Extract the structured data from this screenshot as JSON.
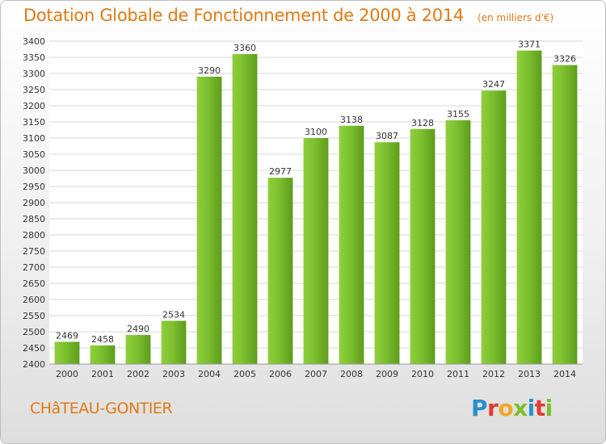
{
  "header": {
    "title": "Dotation Globale de Fonctionnement de 2000 à 2014",
    "subtitle": "(en milliers d'€)"
  },
  "footer": {
    "commune": "CHâTEAU-GONTIER",
    "logo_letters": [
      "P",
      "r",
      "o",
      "x",
      "i",
      "t",
      "i"
    ],
    "logo_colors": [
      "#2a8fd0",
      "#e03c31",
      "#f5a623",
      "#7bbf2a",
      "#2a8fd0",
      "#e03c31",
      "#7bbf2a"
    ]
  },
  "chart_data": {
    "type": "bar",
    "categories": [
      "2000",
      "2001",
      "2002",
      "2003",
      "2004",
      "2005",
      "2006",
      "2007",
      "2008",
      "2009",
      "2010",
      "2011",
      "2012",
      "2013",
      "2014"
    ],
    "values": [
      2469,
      2458,
      2490,
      2534,
      3290,
      3360,
      2977,
      3100,
      3138,
      3087,
      3128,
      3155,
      3247,
      3371,
      3326
    ],
    "title": "Dotation Globale de Fonctionnement de 2000 à 2014",
    "subtitle": "(en milliers d'€)",
    "ylim": [
      2400,
      3400
    ],
    "yticks": [
      2400,
      2450,
      2500,
      2550,
      2600,
      2650,
      2700,
      2750,
      2800,
      2850,
      2900,
      2950,
      3000,
      3050,
      3100,
      3150,
      3200,
      3250,
      3300,
      3350,
      3400
    ],
    "grid": true,
    "legend": "none",
    "bar_color": "#7cbf2e"
  }
}
